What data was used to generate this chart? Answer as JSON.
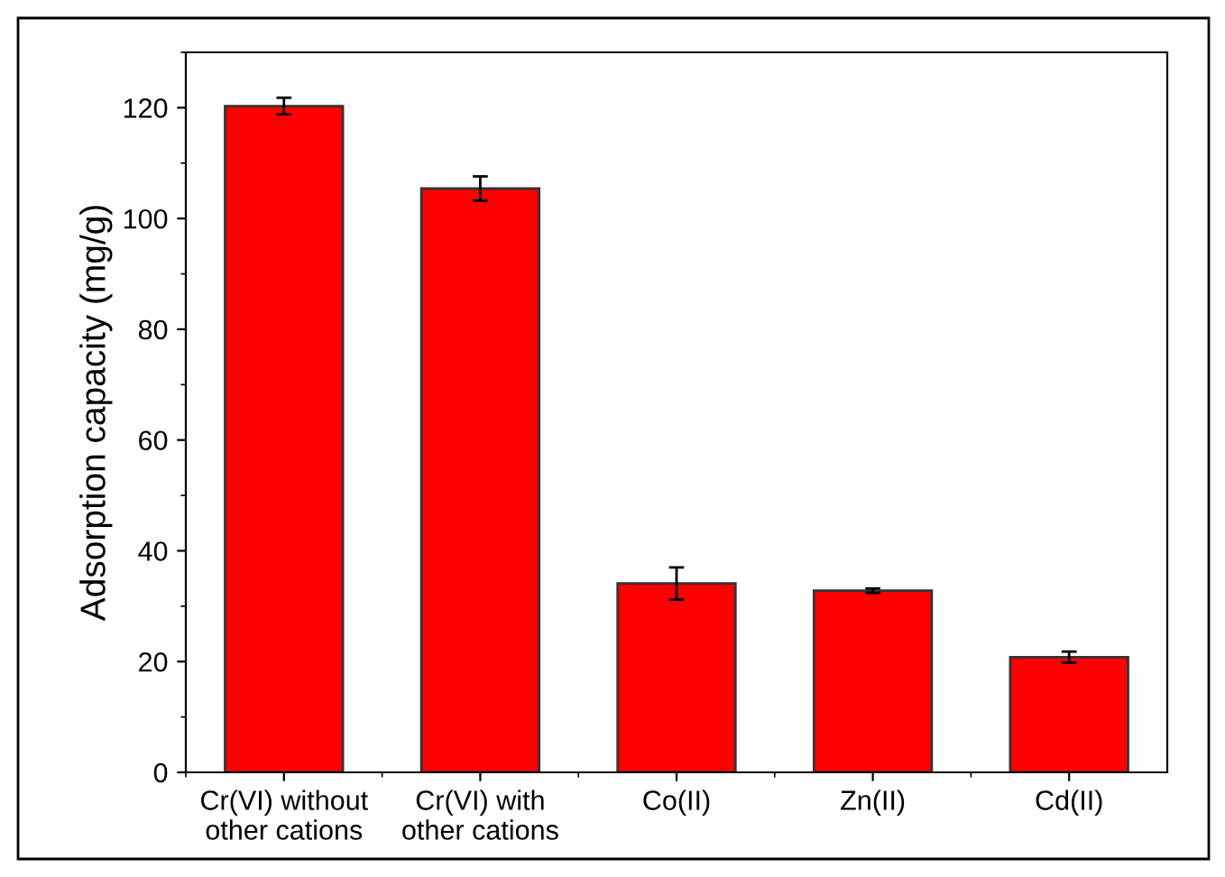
{
  "chart_data": {
    "type": "bar",
    "categories": [
      "Cr(VI) without\nother cations",
      "Cr(VI) with\nother cations",
      "Co(II)",
      "Zn(II)",
      "Cd(II)"
    ],
    "values": [
      120.3,
      105.4,
      34.1,
      32.8,
      20.8
    ],
    "errors": [
      1.5,
      2.2,
      2.9,
      0.4,
      1.0
    ],
    "color": "#ff0000",
    "ylabel": "Adsorption capacity (mg/g)",
    "ylim": [
      0,
      130
    ],
    "yticks": [
      0,
      20,
      40,
      60,
      80,
      100,
      120
    ],
    "grid": false,
    "legend": false
  }
}
